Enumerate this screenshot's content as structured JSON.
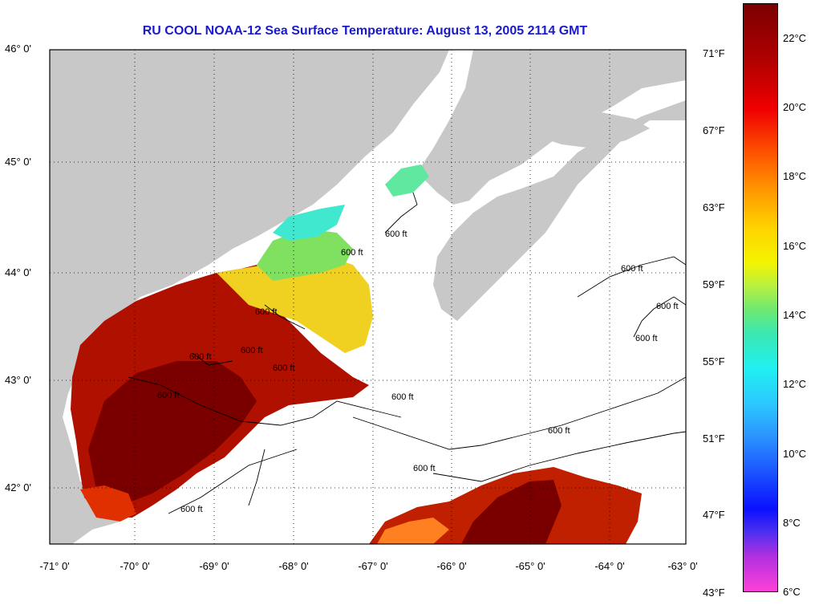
{
  "title": "RU COOL  NOAA-12  Sea Surface Temperature:  August 13, 2005 2114 GMT",
  "map": {
    "lat_labels": [
      "46° 0'",
      "45° 0'",
      "44° 0'",
      "43° 0'",
      "42° 0'"
    ],
    "lon_labels": [
      "-71° 0'",
      "-70° 0'",
      "-69° 0'",
      "-68° 0'",
      "-67° 0'",
      "-66° 0'",
      "-65° 0'",
      "-64° 0'",
      "-63° 0'"
    ],
    "contour_labels": [
      "600 ft",
      "600 ft",
      "600 ft",
      "600 ft",
      "600 ft",
      "600 ft",
      "600 ft",
      "600 ft",
      "600 ft",
      "600 ft",
      "600 ft",
      "600 ft",
      "600 ft",
      "600 ft"
    ],
    "colors": {
      "land": "#c8c8c8",
      "cloud": "#ffffff",
      "grid": "#000000"
    }
  },
  "colorbar": {
    "fahrenheit_labels": [
      "71°F",
      "67°F",
      "63°F",
      "59°F",
      "55°F",
      "51°F",
      "47°F",
      "43°F"
    ],
    "celsius_labels": [
      "22°C",
      "20°C",
      "18°C",
      "16°C",
      "14°C",
      "12°C",
      "10°C",
      "8°C",
      "6°C"
    ],
    "range_c": [
      6,
      23.5
    ]
  }
}
